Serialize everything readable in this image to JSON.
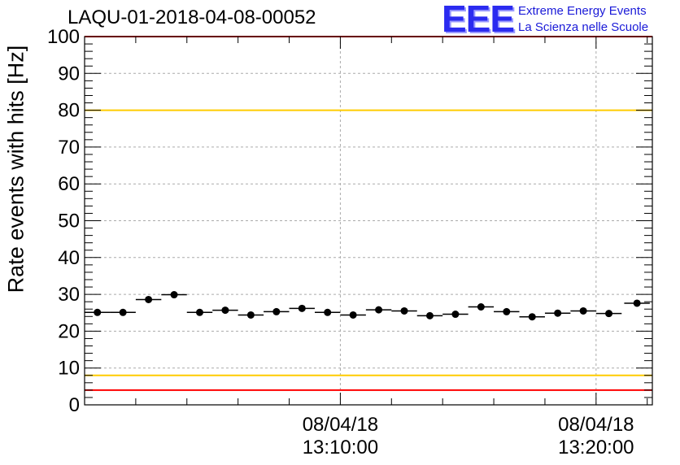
{
  "title": "LAQU-01-2018-04-08-00052",
  "logo": {
    "mark": "EEE",
    "line1": "Extreme Energy Events",
    "line2": "La Scienza nelle Scuole"
  },
  "chart_data": {
    "type": "scatter",
    "title": "LAQU-01-2018-04-08-00052",
    "ylabel": "Rate events with hits [Hz]",
    "xlabel": "",
    "ylim": [
      0,
      100
    ],
    "yticks": [
      0,
      10,
      20,
      30,
      40,
      50,
      60,
      70,
      80,
      90,
      100
    ],
    "xlim_minutes": [
      0,
      22.2
    ],
    "xticks": [
      {
        "minute": 10.0,
        "date": "08/04/18",
        "time": "13:10:00"
      },
      {
        "minute": 20.0,
        "date": "08/04/18",
        "time": "13:20:00"
      }
    ],
    "grid": true,
    "reference_lines": [
      {
        "y": 100,
        "color": "#ff0000"
      },
      {
        "y": 80,
        "color": "#ffcc00"
      },
      {
        "y": 8,
        "color": "#ffcc00"
      },
      {
        "y": 4,
        "color": "#ff0000"
      }
    ],
    "bin_width_minutes": 1.0,
    "x_minutes": [
      0.5,
      1.5,
      2.5,
      3.5,
      4.5,
      5.5,
      6.5,
      7.5,
      8.5,
      9.5,
      10.5,
      11.5,
      12.5,
      13.5,
      14.5,
      15.5,
      16.5,
      17.5,
      18.5,
      19.5,
      20.5,
      21.6
    ],
    "values": [
      25.1,
      25.1,
      28.6,
      29.9,
      25.1,
      25.7,
      24.4,
      25.3,
      26.2,
      25.1,
      24.4,
      25.8,
      25.5,
      24.2,
      24.6,
      26.6,
      25.3,
      23.9,
      24.9,
      25.5,
      24.8,
      27.6
    ],
    "colors": {
      "points": "#000000",
      "grid": "#aaaaaa",
      "logo": "#2b2bf0"
    }
  }
}
